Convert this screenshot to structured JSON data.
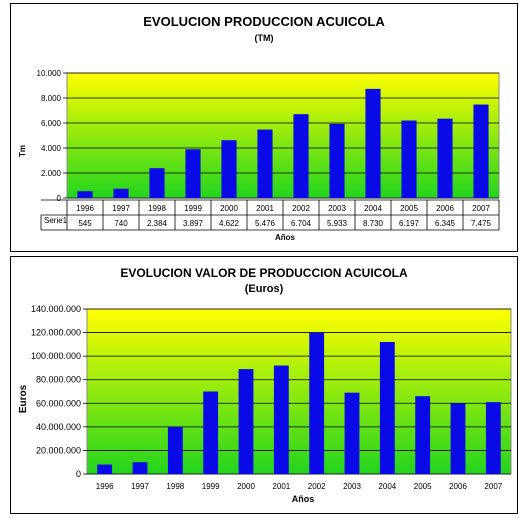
{
  "charts": {
    "production": {
      "title": "EVOLUCION PRODUCCION ACUICOLA",
      "subtitle": "(TM)",
      "ylabel": "Tm",
      "xlabel": "Años",
      "series_label": "Serie1",
      "colors": {
        "bar": "#0a0ae6",
        "plot_top": "#ffff00",
        "plot_bottom": "#22d41e"
      }
    },
    "value": {
      "title": "EVOLUCION VALOR DE PRODUCCION ACUICOLA",
      "subtitle": "(Euros)",
      "ylabel": "Euros",
      "xlabel": "Años",
      "colors": {
        "bar": "#0a0ae6",
        "plot_top": "#ffff00",
        "plot_bottom": "#22d41e"
      }
    }
  },
  "chart_data": [
    {
      "type": "bar",
      "title": "EVOLUCION PRODUCCION ACUICOLA",
      "subtitle": "(TM)",
      "xlabel": "Años",
      "ylabel": "Tm",
      "categories": [
        "1996",
        "1997",
        "1998",
        "1999",
        "2000",
        "2001",
        "2002",
        "2003",
        "2004",
        "2005",
        "2006",
        "2007"
      ],
      "series": [
        {
          "name": "Serie1",
          "values": [
            545,
            740,
            2384,
            3897,
            4622,
            5476,
            6704,
            5933,
            8730,
            6197,
            6345,
            7475
          ]
        }
      ],
      "value_labels": [
        "545",
        "740",
        "2.384",
        "3.897",
        "4.622",
        "5.476",
        "6.704",
        "5.933",
        "8.730",
        "6.197",
        "6.345",
        "7.475"
      ],
      "ylim": [
        0,
        10000
      ],
      "yticks": [
        0,
        2000,
        4000,
        6000,
        8000,
        10000
      ],
      "ytick_labels": [
        "0",
        "2.000",
        "4.000",
        "6.000",
        "8.000",
        "10.000"
      ],
      "grid": true
    },
    {
      "type": "bar",
      "title": "EVOLUCION VALOR DE PRODUCCION ACUICOLA",
      "subtitle": "(Euros)",
      "xlabel": "Años",
      "ylabel": "Euros",
      "categories": [
        "1996",
        "1997",
        "1998",
        "1999",
        "2000",
        "2001",
        "2002",
        "2003",
        "2004",
        "2005",
        "2006",
        "2007"
      ],
      "values": [
        8000000,
        10000000,
        40000000,
        70000000,
        89000000,
        92000000,
        120000000,
        69000000,
        112000000,
        66000000,
        60000000,
        61000000
      ],
      "ylim": [
        0,
        140000000
      ],
      "yticks": [
        0,
        20000000,
        40000000,
        60000000,
        80000000,
        100000000,
        120000000,
        140000000
      ],
      "ytick_labels": [
        "0",
        "20.000.000",
        "40.000.000",
        "60.000.000",
        "80.000.000",
        "100.000.000",
        "120.000.000",
        "140.000.000"
      ],
      "grid": true
    }
  ]
}
